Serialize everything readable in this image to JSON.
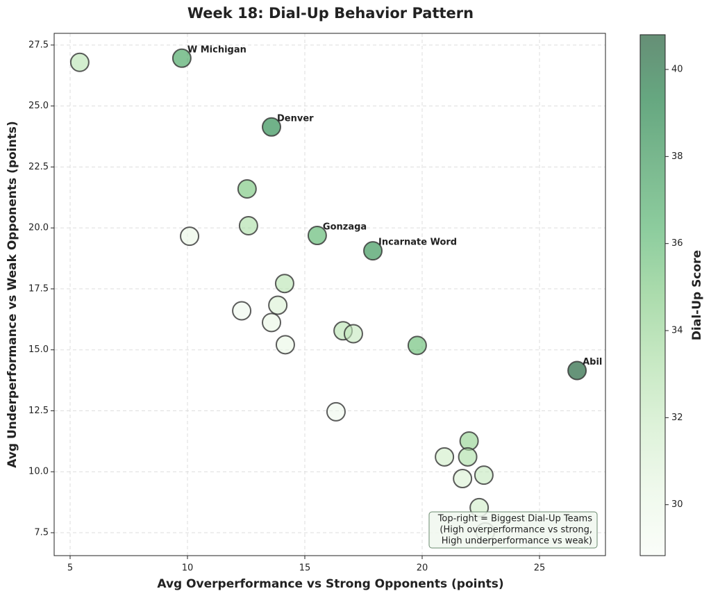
{
  "chart_data": {
    "type": "scatter",
    "title": "Week 18: Dial-Up Behavior Pattern",
    "x_label": "Avg Overperformance vs Strong Opponents (points)",
    "y_label": "Avg Underperformance vs Weak Opponents (points)",
    "colorbar_label": "Dial-Up Score",
    "x": [
      5.41,
      9.76,
      13.58,
      12.54,
      12.6,
      10.09,
      15.53,
      17.9,
      14.14,
      13.85,
      12.31,
      13.58,
      16.63,
      17.07,
      14.17,
      19.79,
      26.6,
      16.33,
      22.0,
      20.95,
      21.94,
      22.63,
      21.72,
      22.43,
      22.69
    ],
    "y": [
      26.79,
      26.96,
      24.14,
      21.6,
      20.09,
      19.66,
      19.69,
      19.06,
      17.72,
      16.83,
      16.6,
      16.12,
      15.78,
      15.66,
      15.21,
      15.18,
      14.15,
      12.46,
      11.26,
      10.61,
      10.61,
      9.86,
      9.72,
      8.53,
      7.53
    ],
    "colors": [
      32.5,
      37,
      38.5,
      35,
      33,
      30,
      36,
      38,
      32.5,
      31,
      29.5,
      30,
      32.5,
      32,
      30,
      35.5,
      40.5,
      29.5,
      34,
      31.5,
      33,
      32,
      31,
      31.5,
      29.5
    ],
    "point_labels": [
      null,
      "W Michigan",
      "Denver",
      null,
      null,
      null,
      "Gonzaga",
      "Incarnate Word",
      null,
      null,
      null,
      null,
      null,
      null,
      null,
      null,
      "Abil Christ",
      null,
      null,
      null,
      null,
      null,
      null,
      null,
      null
    ],
    "colormap": [
      "#f7fcf5",
      "#e5f5e0",
      "#c7e9c0",
      "#a1d99b",
      "#74c476",
      "#41ab5d",
      "#238b45",
      "#006d2c",
      "#00441b"
    ],
    "xlim": [
      4.32,
      27.81
    ],
    "ylim": [
      6.56,
      27.98
    ],
    "clim": [
      28.83,
      40.83
    ],
    "xticks": [
      5,
      10,
      15,
      20,
      25
    ],
    "yticks": [
      7.5,
      {
        "value": 10,
        "label": "10.0"
      },
      12.5,
      {
        "value": 15,
        "label": "15.0"
      },
      17.5,
      {
        "value": 20,
        "label": "20.0"
      },
      22.5,
      {
        "value": 25,
        "label": "25.0"
      },
      27.5
    ],
    "cticks": [
      30,
      32,
      34,
      36,
      38,
      40
    ],
    "grid": true,
    "note": [
      "Top-right = Biggest Dial-Up Teams",
      "(High overperformance vs strong,",
      "High underperformance vs weak)"
    ]
  }
}
